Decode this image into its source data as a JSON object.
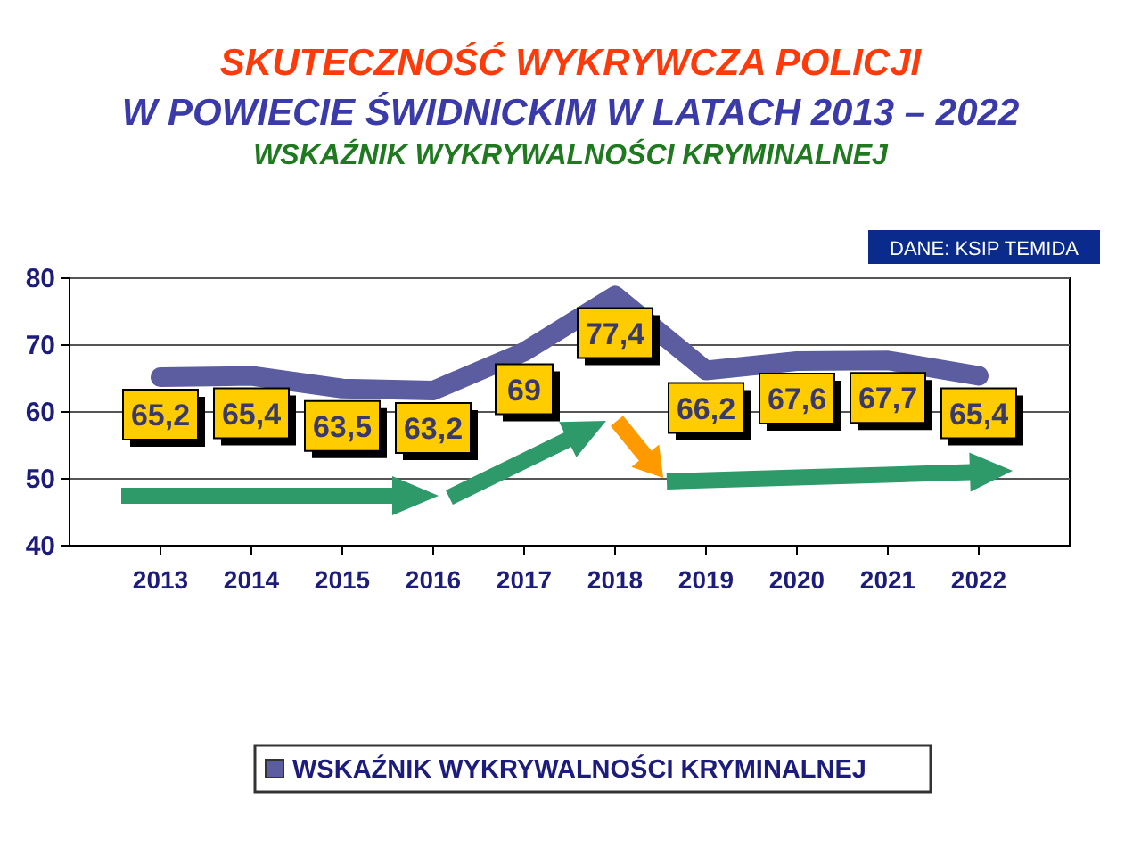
{
  "chart_data": {
    "type": "line",
    "title": "SKUTECZNOŚĆ WYKRYWCZA POLICJI",
    "subtitle": "W POWIECIE ŚWIDNICKIM W LATACH 2013 – 2022",
    "annotations": [
      "WSKAŹNIK WYKRYWALNOŚCI KRYMINALNEJ",
      "DANE: KSIP TEMIDA"
    ],
    "categories": [
      "2013",
      "2014",
      "2015",
      "2016",
      "2017",
      "2018",
      "2019",
      "2020",
      "2021",
      "2022"
    ],
    "series": [
      {
        "name": "WSKAŹNIK WYKRYWALNOŚCI KRYMINALNEJ",
        "color": "#5c5ca0",
        "values": [
          65.2,
          65.4,
          63.5,
          63.2,
          69,
          77.4,
          66.2,
          67.6,
          67.7,
          65.4
        ],
        "value_labels": [
          "65,2",
          "65,4",
          "63,5",
          "63,2",
          "69",
          "77,4",
          "66,2",
          "67,6",
          "67,7",
          "65,4"
        ]
      }
    ],
    "ylim": [
      40,
      80
    ],
    "yticks": [
      40,
      50,
      60,
      70,
      80
    ],
    "grid": "y",
    "legend": "bottom"
  }
}
